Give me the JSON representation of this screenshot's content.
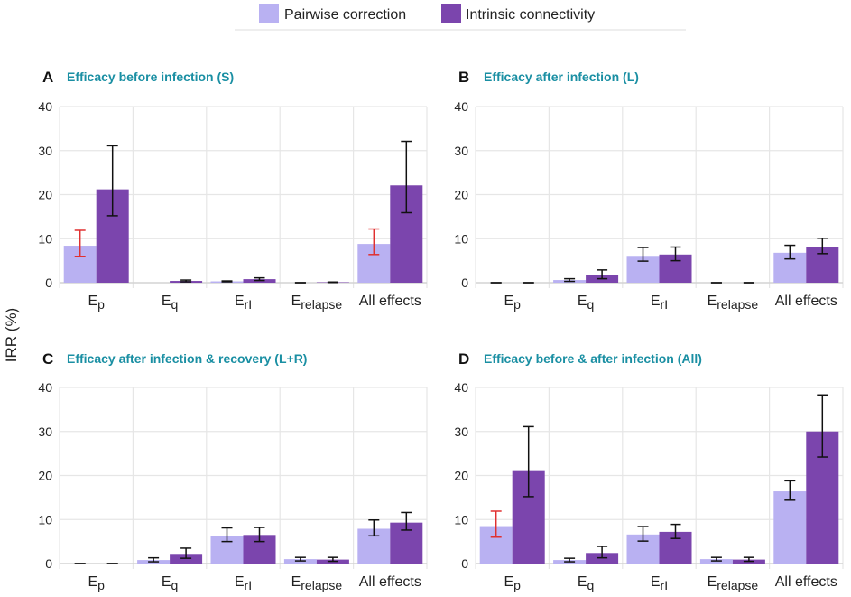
{
  "legend": {
    "items": [
      {
        "label": "Pairwise correction",
        "color": "#b9b1f2"
      },
      {
        "label": "Intrinsic connectivity",
        "color": "#7b45ad"
      }
    ]
  },
  "y_axis_label": "IRR (%)",
  "colors": {
    "pairwise": "#b9b1f2",
    "intrinsic": "#7b45ad",
    "title": "#1a8fa3",
    "error_red": "#e03030",
    "error_black": "#111111",
    "grid": "#e6e6e6"
  },
  "chart_data": [
    {
      "type": "bar",
      "panel_letter": "A",
      "title": "Efficacy before infection (S)",
      "categories": [
        {
          "main": "E",
          "sub": "p"
        },
        {
          "main": "E",
          "sub": "q"
        },
        {
          "main": "E",
          "sub": "rI"
        },
        {
          "main": "E",
          "sub": "relapse"
        },
        {
          "main": "All effects",
          "sub": ""
        }
      ],
      "series": [
        {
          "name": "Pairwise correction",
          "values": [
            8.4,
            0,
            0.3,
            0,
            8.8
          ],
          "err_low": [
            6.0,
            0,
            0.2,
            0,
            6.4
          ],
          "err_high": [
            11.9,
            0,
            0.4,
            0,
            12.2
          ],
          "err_color": [
            "red",
            "none",
            "black",
            "black",
            "red"
          ]
        },
        {
          "name": "Intrinsic connectivity",
          "values": [
            21.2,
            0.4,
            0.8,
            0.1,
            22.1
          ],
          "err_low": [
            15.2,
            0.2,
            0.5,
            0.05,
            15.9
          ],
          "err_high": [
            31.1,
            0.6,
            1.1,
            0.15,
            32.1
          ],
          "err_color": [
            "black",
            "black",
            "black",
            "black",
            "black"
          ]
        }
      ],
      "ylabel": "IRR (%)",
      "ylim": [
        0,
        40
      ],
      "yticks": [
        0,
        10,
        20,
        30,
        40
      ]
    },
    {
      "type": "bar",
      "panel_letter": "B",
      "title": "Efficacy after infection (L)",
      "categories": [
        {
          "main": "E",
          "sub": "p"
        },
        {
          "main": "E",
          "sub": "q"
        },
        {
          "main": "E",
          "sub": "rI"
        },
        {
          "main": "E",
          "sub": "relapse"
        },
        {
          "main": "All effects",
          "sub": ""
        }
      ],
      "series": [
        {
          "name": "Pairwise correction",
          "values": [
            0,
            0.6,
            6.1,
            0,
            6.8
          ],
          "err_low": [
            0,
            0.3,
            4.9,
            0,
            5.4
          ],
          "err_high": [
            0,
            0.9,
            8.0,
            0,
            8.5
          ],
          "err_color": [
            "black",
            "black",
            "black",
            "black",
            "black"
          ]
        },
        {
          "name": "Intrinsic connectivity",
          "values": [
            0,
            1.8,
            6.4,
            0,
            8.2
          ],
          "err_low": [
            0,
            0.9,
            5.0,
            0,
            6.6
          ],
          "err_high": [
            0,
            2.9,
            8.1,
            0,
            10.1
          ],
          "err_color": [
            "black",
            "black",
            "black",
            "black",
            "black"
          ]
        }
      ],
      "ylabel": "",
      "ylim": [
        0,
        40
      ],
      "yticks": [
        0,
        10,
        20,
        30,
        40
      ]
    },
    {
      "type": "bar",
      "panel_letter": "C",
      "title": "Efficacy after infection & recovery (L+R)",
      "categories": [
        {
          "main": "E",
          "sub": "p"
        },
        {
          "main": "E",
          "sub": "q"
        },
        {
          "main": "E",
          "sub": "rI"
        },
        {
          "main": "E",
          "sub": "relapse"
        },
        {
          "main": "All effects",
          "sub": ""
        }
      ],
      "series": [
        {
          "name": "Pairwise correction",
          "values": [
            0,
            0.8,
            6.3,
            1.0,
            7.9
          ],
          "err_low": [
            0,
            0.4,
            5.0,
            0.6,
            6.3
          ],
          "err_high": [
            0,
            1.3,
            8.1,
            1.4,
            9.9
          ],
          "err_color": [
            "black",
            "black",
            "black",
            "black",
            "black"
          ]
        },
        {
          "name": "Intrinsic connectivity",
          "values": [
            0,
            2.2,
            6.5,
            0.9,
            9.3
          ],
          "err_low": [
            0,
            1.2,
            5.0,
            0.5,
            7.6
          ],
          "err_high": [
            0,
            3.5,
            8.2,
            1.4,
            11.6
          ],
          "err_color": [
            "black",
            "black",
            "black",
            "black",
            "black"
          ]
        }
      ],
      "ylabel": "",
      "ylim": [
        0,
        40
      ],
      "yticks": [
        0,
        10,
        20,
        30,
        40
      ]
    },
    {
      "type": "bar",
      "panel_letter": "D",
      "title": "Efficacy before & after infection (All)",
      "categories": [
        {
          "main": "E",
          "sub": "p"
        },
        {
          "main": "E",
          "sub": "q"
        },
        {
          "main": "E",
          "sub": "rI"
        },
        {
          "main": "E",
          "sub": "relapse"
        },
        {
          "main": "All effects",
          "sub": ""
        }
      ],
      "series": [
        {
          "name": "Pairwise correction",
          "values": [
            8.5,
            0.8,
            6.6,
            1.0,
            16.4
          ],
          "err_low": [
            6.0,
            0.4,
            5.1,
            0.6,
            14.4
          ],
          "err_high": [
            11.9,
            1.2,
            8.4,
            1.4,
            18.8
          ],
          "err_color": [
            "red",
            "black",
            "black",
            "black",
            "black"
          ]
        },
        {
          "name": "Intrinsic connectivity",
          "values": [
            21.2,
            2.4,
            7.2,
            0.9,
            30.0
          ],
          "err_low": [
            15.2,
            1.3,
            5.7,
            0.5,
            24.2
          ],
          "err_high": [
            31.1,
            3.9,
            8.9,
            1.4,
            38.3
          ],
          "err_color": [
            "black",
            "black",
            "black",
            "black",
            "black"
          ]
        }
      ],
      "ylabel": "",
      "ylim": [
        0,
        40
      ],
      "yticks": [
        0,
        10,
        20,
        30,
        40
      ]
    }
  ]
}
